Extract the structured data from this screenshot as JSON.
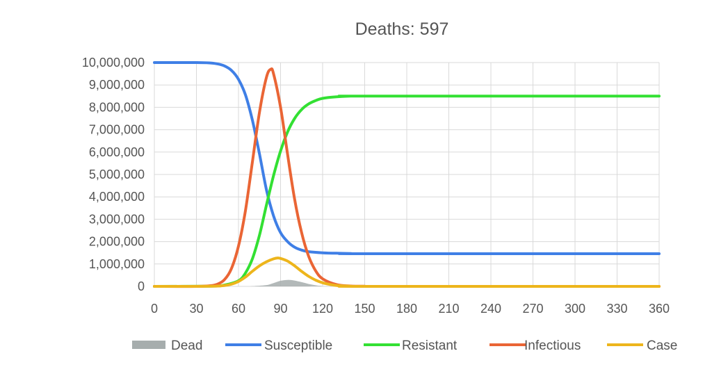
{
  "chart_data": {
    "type": "line",
    "title": "Deaths: 597",
    "xlabel": "",
    "ylabel": "",
    "xlim": [
      0,
      360
    ],
    "ylim": [
      0,
      10000000
    ],
    "x_ticks": [
      0,
      30,
      60,
      90,
      120,
      150,
      180,
      210,
      240,
      270,
      300,
      330,
      360
    ],
    "y_ticks": [
      0,
      1000000,
      2000000,
      3000000,
      4000000,
      5000000,
      6000000,
      7000000,
      8000000,
      9000000,
      10000000
    ],
    "y_tick_labels": [
      "0",
      "1,000,000",
      "2,000,000",
      "3,000,000",
      "4,000,000",
      "5,000,000",
      "6,000,000",
      "7,000,000",
      "8,000,000",
      "9,000,000",
      "10,000,000"
    ],
    "grid": true,
    "legend_position": "bottom",
    "series": [
      {
        "name": "Dead",
        "kind": "area",
        "color": "#a6adad",
        "x": [
          0,
          60,
          70,
          80,
          85,
          90,
          95,
          100,
          105,
          110,
          115,
          120,
          130,
          360
        ],
        "y": [
          0,
          0,
          10000,
          60000,
          150000,
          250000,
          290000,
          260000,
          190000,
          110000,
          50000,
          20000,
          0,
          0
        ]
      },
      {
        "name": "Susceptible",
        "kind": "line",
        "color": "#3f7fe6",
        "x": [
          0,
          30,
          40,
          45,
          50,
          55,
          60,
          65,
          70,
          75,
          80,
          85,
          90,
          95,
          100,
          105,
          110,
          120,
          130,
          140,
          150,
          360
        ],
        "y": [
          10000000,
          10000000,
          9980000,
          9940000,
          9850000,
          9650000,
          9250000,
          8550000,
          7400000,
          5900000,
          4300000,
          3150000,
          2400000,
          2000000,
          1750000,
          1620000,
          1550000,
          1500000,
          1480000,
          1470000,
          1460000,
          1460000
        ]
      },
      {
        "name": "Resistant",
        "kind": "line",
        "color": "#33e033",
        "x": [
          0,
          40,
          50,
          60,
          65,
          70,
          75,
          80,
          85,
          90,
          95,
          100,
          105,
          110,
          115,
          120,
          130,
          140,
          150,
          360
        ],
        "y": [
          0,
          10000,
          60000,
          250000,
          600000,
          1250000,
          2300000,
          3650000,
          4950000,
          6050000,
          6900000,
          7500000,
          7900000,
          8150000,
          8300000,
          8400000,
          8470000,
          8500000,
          8500000,
          8500000
        ]
      },
      {
        "name": "Infectious",
        "kind": "line",
        "color": "#ea6535",
        "x": [
          0,
          30,
          40,
          45,
          50,
          55,
          60,
          65,
          70,
          75,
          80,
          83,
          85,
          90,
          95,
          100,
          105,
          110,
          115,
          120,
          130,
          140,
          150,
          160,
          360
        ],
        "y": [
          0,
          0,
          30000,
          100000,
          300000,
          800000,
          1800000,
          3400000,
          5600000,
          7800000,
          9350000,
          9700000,
          9500000,
          8000000,
          5900000,
          3900000,
          2400000,
          1350000,
          700000,
          340000,
          80000,
          15000,
          5000,
          0,
          0
        ]
      },
      {
        "name": "Case",
        "kind": "line",
        "color": "#edb51c",
        "x": [
          0,
          40,
          50,
          55,
          60,
          65,
          70,
          75,
          80,
          85,
          88,
          90,
          95,
          100,
          105,
          110,
          115,
          120,
          125,
          130,
          140,
          150,
          360
        ],
        "y": [
          0,
          5000,
          40000,
          100000,
          220000,
          420000,
          680000,
          920000,
          1100000,
          1230000,
          1270000,
          1250000,
          1130000,
          920000,
          670000,
          450000,
          280000,
          160000,
          90000,
          40000,
          10000,
          0,
          0
        ]
      }
    ]
  }
}
